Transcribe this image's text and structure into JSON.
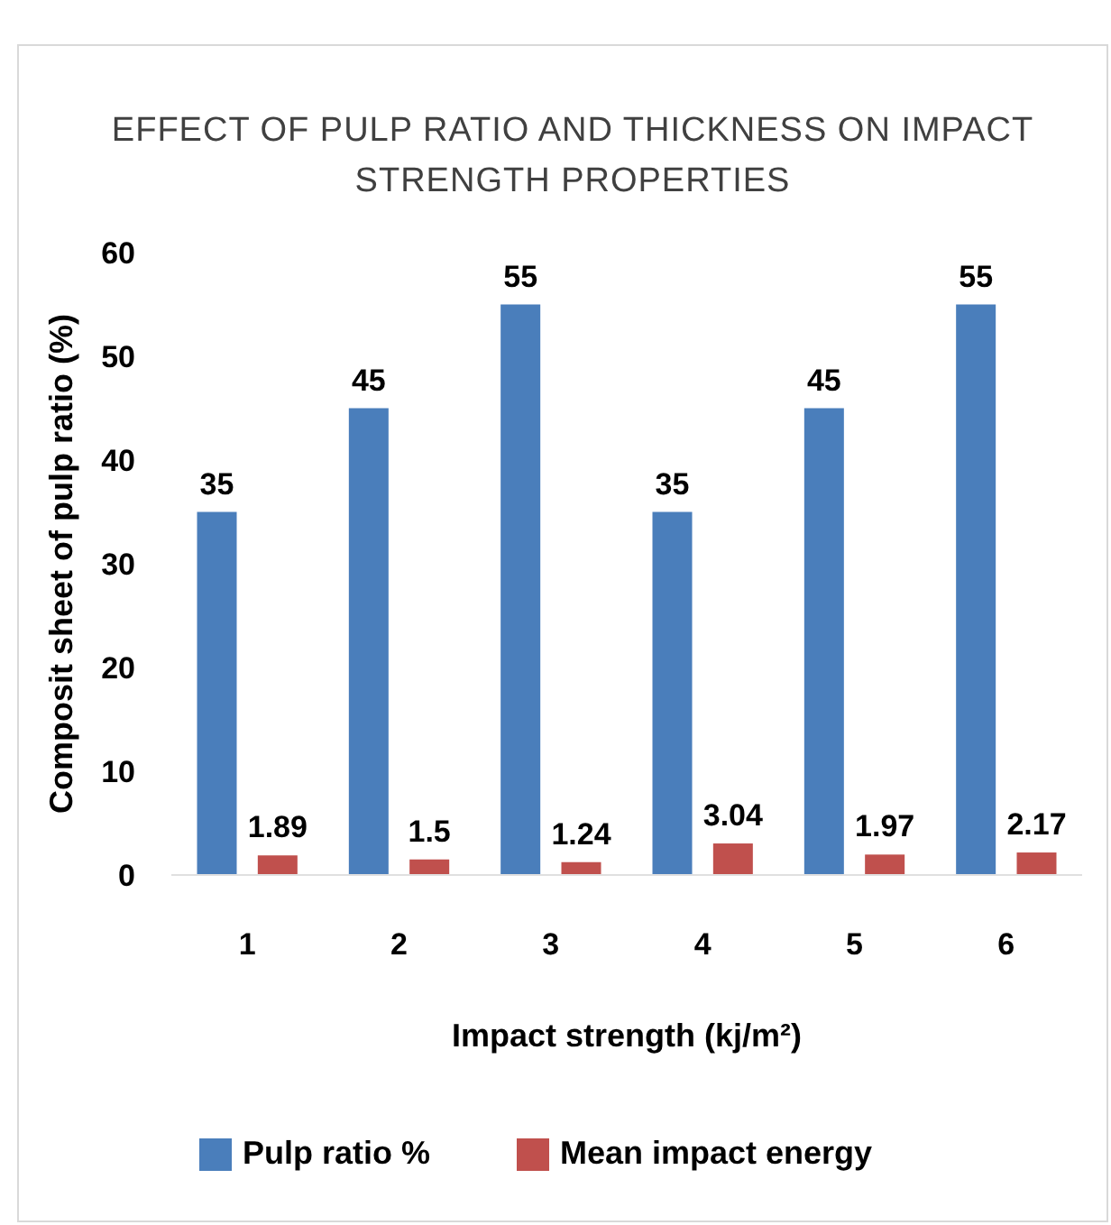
{
  "chart_data": {
    "type": "bar",
    "title": "EFFECT OF PULP RATIO AND THICKNESS ON IMPACT STRENGTH PROPERTIES",
    "xlabel": "Impact strength (kj/m²)",
    "ylabel": "Composit sheet of pulp ratio (%)",
    "categories": [
      "1",
      "2",
      "3",
      "4",
      "5",
      "6"
    ],
    "series": [
      {
        "name": "Pulp ratio %",
        "color": "#4a7ebb",
        "values": [
          35,
          45,
          55,
          35,
          45,
          55
        ]
      },
      {
        "name": "Mean impact energy",
        "color": "#c0504d",
        "values": [
          1.89,
          1.5,
          1.24,
          3.04,
          1.97,
          2.17
        ]
      }
    ],
    "ylim": [
      0,
      60
    ],
    "yticks": [
      0,
      10,
      20,
      30,
      40,
      50,
      60
    ],
    "grid": false,
    "legend": "bottom",
    "data_labels": true
  }
}
